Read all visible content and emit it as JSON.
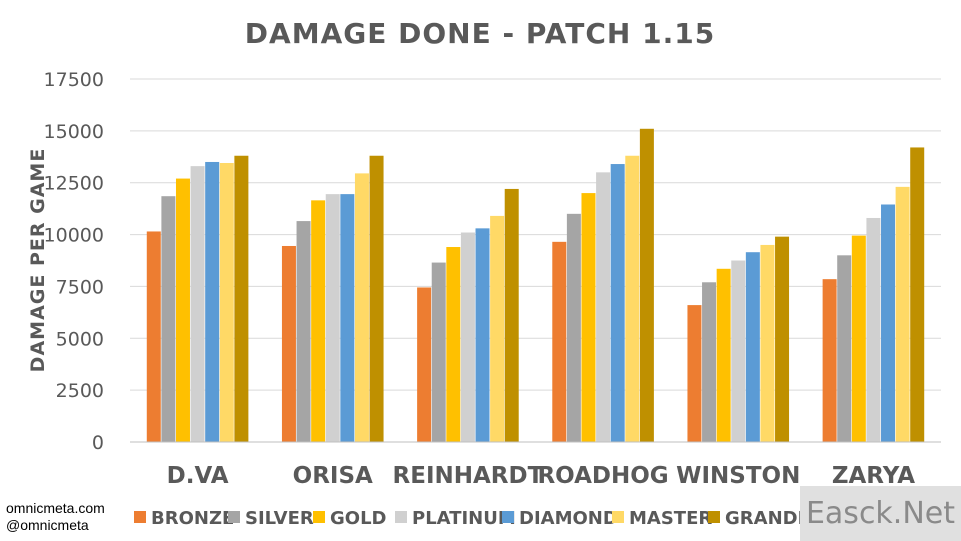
{
  "chart_data": {
    "type": "bar",
    "title": "DAMAGE DONE - PATCH 1.15",
    "ylabel": "DAMAGE PER GAME",
    "xlabel": "",
    "ylim": [
      0,
      17500
    ],
    "yticks": [
      0,
      2500,
      5000,
      7500,
      10000,
      12500,
      15000,
      17500
    ],
    "grid": true,
    "legend_position": "bottom",
    "categories": [
      "D.VA",
      "ORISA",
      "REINHARDT",
      "ROADHOG",
      "WINSTON",
      "ZARYA"
    ],
    "series": [
      {
        "name": "BRONZE",
        "color": "#ED7D31",
        "values": [
          10150,
          9450,
          7450,
          9650,
          6600,
          7850
        ]
      },
      {
        "name": "SILVER",
        "color": "#A5A5A5",
        "values": [
          11850,
          10650,
          8650,
          11000,
          7700,
          9000
        ]
      },
      {
        "name": "GOLD",
        "color": "#FFC000",
        "values": [
          12700,
          11650,
          9400,
          12000,
          8350,
          9950
        ]
      },
      {
        "name": "PLATINUM",
        "color": "#D0D0D0",
        "values": [
          13300,
          11950,
          10100,
          13000,
          8750,
          10800
        ]
      },
      {
        "name": "DIAMOND",
        "color": "#5B9BD5",
        "values": [
          13500,
          11950,
          10300,
          13400,
          9150,
          11450
        ]
      },
      {
        "name": "MASTER",
        "color": "#FFD966",
        "values": [
          13450,
          12950,
          10900,
          13800,
          9500,
          12300
        ]
      },
      {
        "name": "GRANDMASTER",
        "color": "#BF9000",
        "values": [
          13800,
          13800,
          12200,
          15100,
          9900,
          14200
        ]
      }
    ]
  },
  "credits": {
    "line1": "omnicmeta.com",
    "line2": "@omnicmeta"
  },
  "watermark": "Easck.Net"
}
